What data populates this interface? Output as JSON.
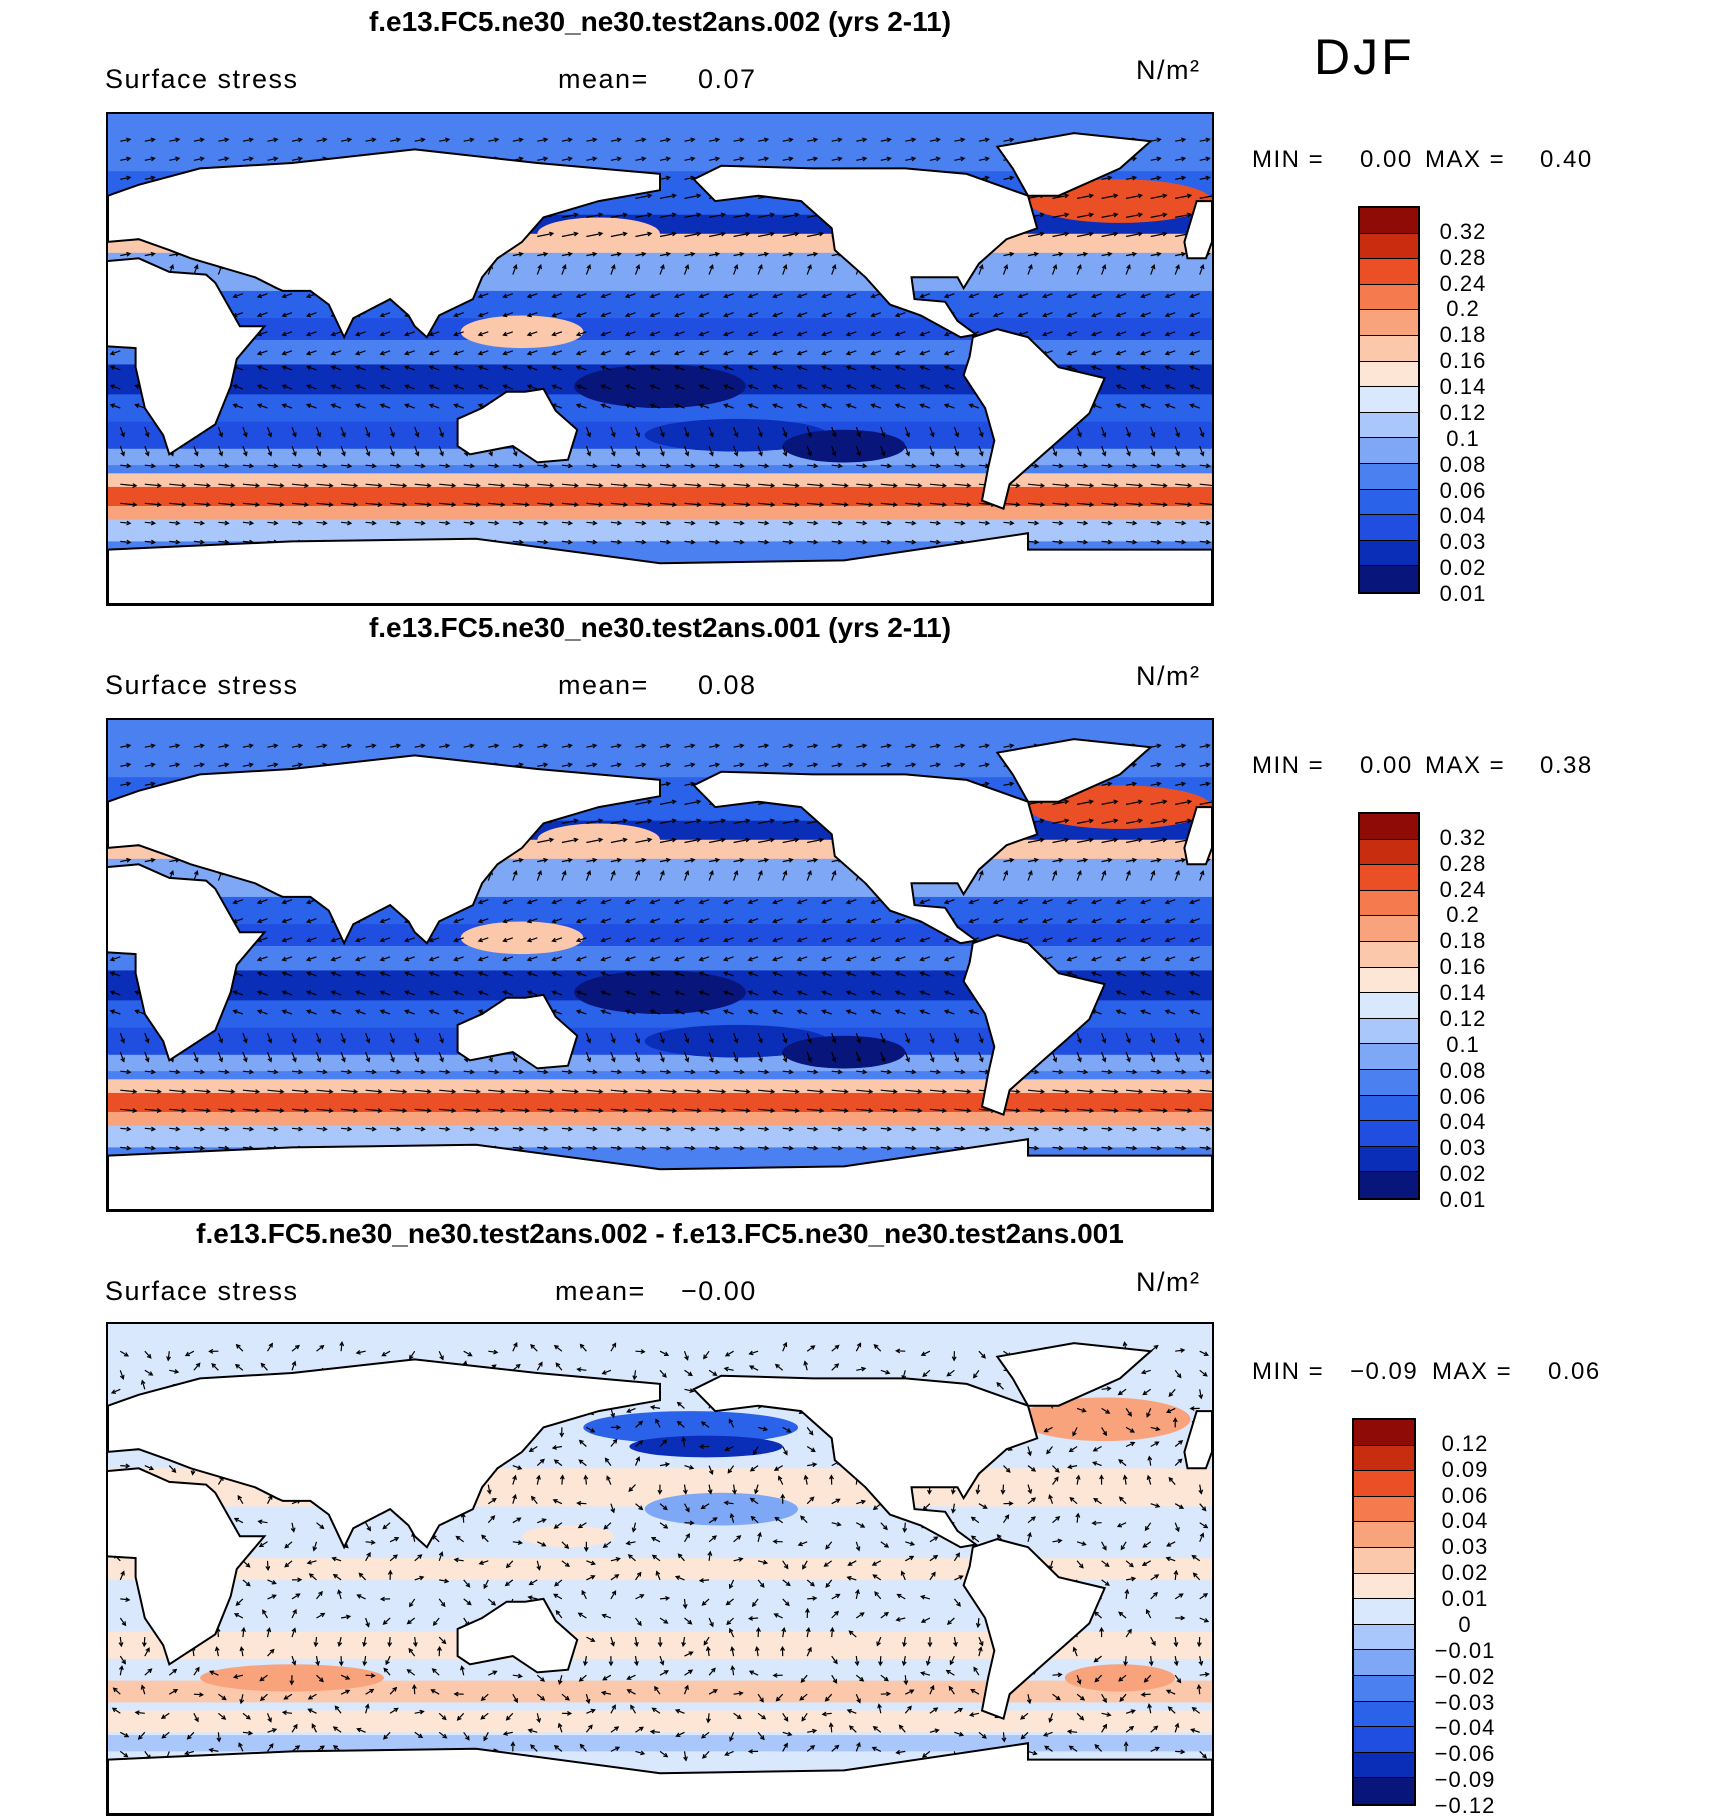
{
  "season": "DJF",
  "colors": {
    "land": "#ffffff",
    "abs_scale": [
      "#08157a",
      "#0a2eb8",
      "#1f4ee0",
      "#2a63ea",
      "#4a80f0",
      "#7ea8f6",
      "#a9c7fa",
      "#d9e8fd",
      "#fde6d6",
      "#fcc8ac",
      "#f9a37d",
      "#f57b4f",
      "#ea4f25",
      "#c82d10",
      "#8f0c06"
    ],
    "diff_scale": [
      "#08157a",
      "#0a2eb8",
      "#1f4ee0",
      "#2a63ea",
      "#4a80f0",
      "#7ea8f6",
      "#a9c7fa",
      "#d9e8fd",
      "#fde6d6",
      "#fcc8ac",
      "#f9a37d",
      "#f57b4f",
      "#ea4f25",
      "#c82d10",
      "#8f0c06"
    ]
  },
  "panels": [
    {
      "title": "f.e13.FC5.ne30_ne30.test2ans.002 (yrs 2-11)",
      "variable": "Surface stress",
      "mean_label": "mean=",
      "mean_value": "0.07",
      "units": "N/m²",
      "min_label": "MIN =",
      "min_value": "0.00",
      "max_label": "MAX =",
      "max_value": "0.40",
      "kind": "abs"
    },
    {
      "title": "f.e13.FC5.ne30_ne30.test2ans.001 (yrs 2-11)",
      "variable": "Surface stress",
      "mean_label": "mean=",
      "mean_value": "0.08",
      "units": "N/m²",
      "min_label": "MIN =",
      "min_value": "0.00",
      "max_label": "MAX =",
      "max_value": "0.38",
      "kind": "abs"
    },
    {
      "title": "f.e13.FC5.ne30_ne30.test2ans.002 - f.e13.FC5.ne30_ne30.test2ans.001",
      "variable": "Surface stress",
      "mean_label": "mean=",
      "mean_value": "−0.00",
      "units": "N/m²",
      "min_label": "MIN =",
      "min_value": "−0.09",
      "max_label": "MAX =",
      "max_value": "0.06",
      "kind": "diff"
    }
  ],
  "chart_data": {
    "type": "heatmap",
    "field": "Surface stress",
    "units": "N/m²",
    "season": "DJF",
    "maps": [
      {
        "name": "f.e13.FC5.ne30_ne30.test2ans.002 (yrs 2-11)",
        "mean": 0.07,
        "min": 0.0,
        "max": 0.4,
        "contour_levels": [
          0.01,
          0.02,
          0.03,
          0.04,
          0.06,
          0.08,
          0.1,
          0.12,
          0.14,
          0.16,
          0.18,
          0.2,
          0.24,
          0.28,
          0.32
        ]
      },
      {
        "name": "f.e13.FC5.ne30_ne30.test2ans.001 (yrs 2-11)",
        "mean": 0.08,
        "min": 0.0,
        "max": 0.38,
        "contour_levels": [
          0.01,
          0.02,
          0.03,
          0.04,
          0.06,
          0.08,
          0.1,
          0.12,
          0.14,
          0.16,
          0.18,
          0.2,
          0.24,
          0.28,
          0.32
        ]
      },
      {
        "name": "f.e13.FC5.ne30_ne30.test2ans.002 - f.e13.FC5.ne30_ne30.test2ans.001",
        "mean": -0.0,
        "min": -0.09,
        "max": 0.06,
        "contour_levels": [
          -0.12,
          -0.09,
          -0.06,
          -0.04,
          -0.03,
          -0.02,
          -0.01,
          0,
          0.01,
          0.02,
          0.03,
          0.04,
          0.06,
          0.09,
          0.12
        ]
      }
    ],
    "colorbar_labels_abs": [
      "0.32",
      "0.28",
      "0.24",
      "0.2",
      "0.18",
      "0.16",
      "0.14",
      "0.12",
      "0.1",
      "0.08",
      "0.06",
      "0.04",
      "0.03",
      "0.02",
      "0.01"
    ],
    "colorbar_labels_diff": [
      "0.12",
      "0.09",
      "0.06",
      "0.04",
      "0.03",
      "0.02",
      "0.01",
      "0",
      "−0.01",
      "−0.02",
      "−0.03",
      "−0.04",
      "−0.06",
      "−0.09",
      "−0.12"
    ]
  }
}
